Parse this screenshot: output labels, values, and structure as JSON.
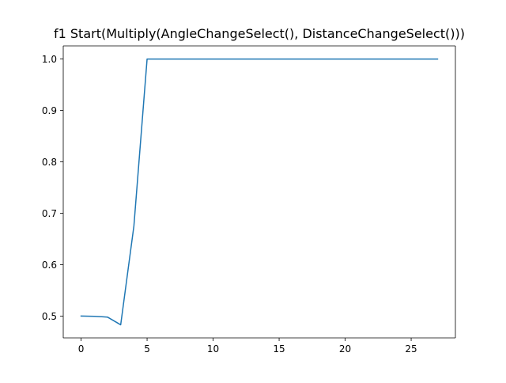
{
  "chart_data": {
    "type": "line",
    "title": "f1 Start(Multiply(AngleChangeSelect(), DistanceChangeSelect()))",
    "xlabel": "",
    "ylabel": "",
    "xlim": [
      -1.35,
      28.35
    ],
    "ylim": [
      0.4575,
      1.0255
    ],
    "xticks": [
      0,
      5,
      10,
      15,
      20,
      25
    ],
    "yticks": [
      0.5,
      0.6,
      0.7,
      0.8,
      0.9,
      1.0
    ],
    "ytick_labels": [
      "0.5",
      "0.6",
      "0.7",
      "0.8",
      "0.9",
      "1.0"
    ],
    "grid": false,
    "legend": "none",
    "line_color": "#1f77b4",
    "series": [
      {
        "x": [
          0,
          1,
          2,
          3,
          4,
          5,
          6,
          7,
          8,
          9,
          10,
          11,
          12,
          13,
          14,
          15,
          16,
          17,
          18,
          19,
          20,
          21,
          22,
          23,
          24,
          25,
          26,
          27
        ],
        "values": [
          0.5,
          0.4995,
          0.498,
          0.483,
          0.675,
          1.0,
          1.0,
          1.0,
          1.0,
          1.0,
          1.0,
          1.0,
          1.0,
          1.0,
          1.0,
          1.0,
          1.0,
          1.0,
          1.0,
          1.0,
          1.0,
          1.0,
          1.0,
          1.0,
          1.0,
          1.0,
          1.0,
          1.0
        ]
      }
    ]
  }
}
